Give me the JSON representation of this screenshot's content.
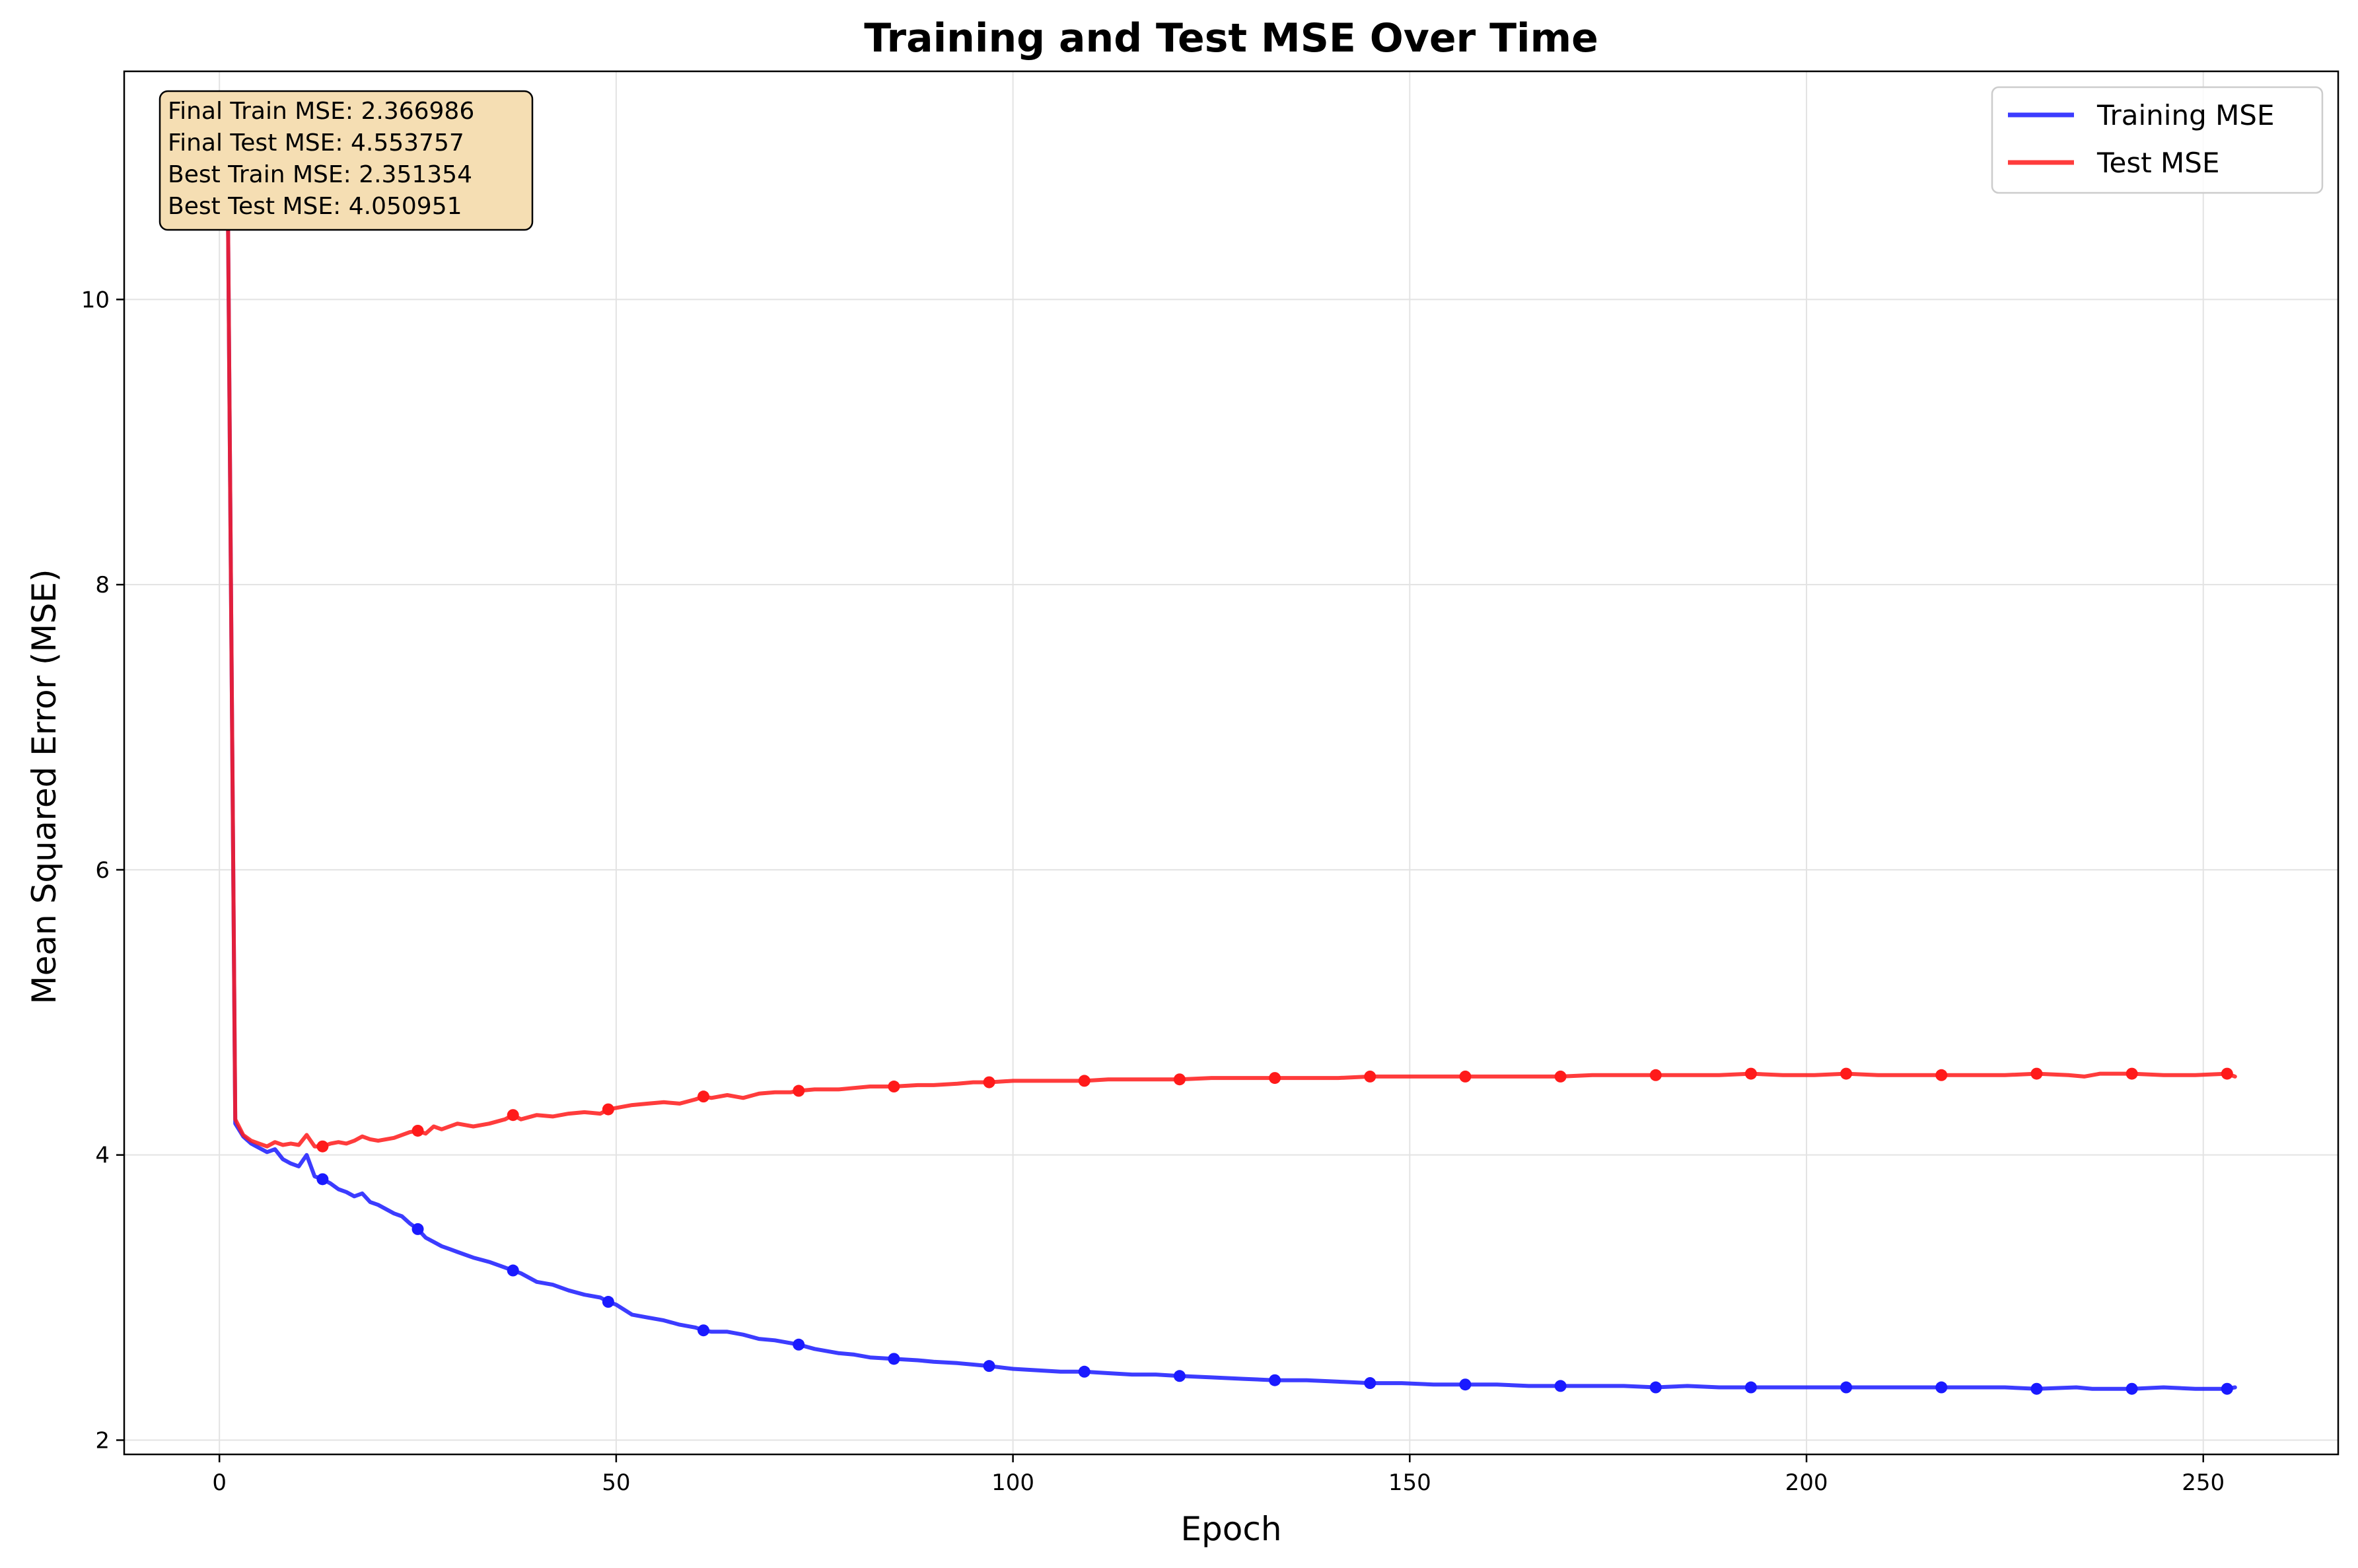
{
  "chart_data": {
    "type": "line",
    "title": "Training and Test MSE Over Time",
    "xlabel": "Epoch",
    "ylabel": "Mean Squared Error (MSE)",
    "xlim": [
      -12,
      267
    ],
    "ylim": [
      1.9,
      11.6
    ],
    "xticks": [
      0,
      50,
      100,
      150,
      200,
      250
    ],
    "yticks": [
      2,
      4,
      6,
      8,
      10
    ],
    "grid": true,
    "legend_position": "top-right",
    "stats_box": [
      "Final Train MSE: 2.366986",
      "Final Test MSE: 4.553757",
      "Best Train MSE: 2.351354",
      "Best Test MSE: 4.050951"
    ],
    "marker_epochs": [
      13,
      25,
      37,
      49,
      61,
      73,
      85,
      97,
      109,
      121,
      133,
      145,
      157,
      169,
      181,
      193,
      205,
      217,
      229,
      241,
      253
    ],
    "series": [
      {
        "name": "Training MSE",
        "color": "#1a1aff",
        "points": [
          [
            1,
            11.15
          ],
          [
            2,
            4.22
          ],
          [
            3,
            4.13
          ],
          [
            4,
            4.08
          ],
          [
            5,
            4.05
          ],
          [
            6,
            4.02
          ],
          [
            7,
            4.04
          ],
          [
            8,
            3.97
          ],
          [
            9,
            3.94
          ],
          [
            10,
            3.92
          ],
          [
            11,
            4.0
          ],
          [
            12,
            3.85
          ],
          [
            13,
            3.83
          ],
          [
            14,
            3.8
          ],
          [
            15,
            3.76
          ],
          [
            16,
            3.74
          ],
          [
            17,
            3.71
          ],
          [
            18,
            3.73
          ],
          [
            19,
            3.67
          ],
          [
            20,
            3.65
          ],
          [
            21,
            3.62
          ],
          [
            22,
            3.59
          ],
          [
            23,
            3.57
          ],
          [
            24,
            3.52
          ],
          [
            25,
            3.48
          ],
          [
            26,
            3.42
          ],
          [
            27,
            3.39
          ],
          [
            28,
            3.36
          ],
          [
            29,
            3.34
          ],
          [
            30,
            3.32
          ],
          [
            32,
            3.28
          ],
          [
            34,
            3.25
          ],
          [
            36,
            3.21
          ],
          [
            37,
            3.19
          ],
          [
            38,
            3.17
          ],
          [
            40,
            3.11
          ],
          [
            42,
            3.09
          ],
          [
            44,
            3.05
          ],
          [
            46,
            3.02
          ],
          [
            48,
            3.0
          ],
          [
            49,
            2.97
          ],
          [
            50,
            2.95
          ],
          [
            52,
            2.88
          ],
          [
            54,
            2.86
          ],
          [
            56,
            2.84
          ],
          [
            58,
            2.81
          ],
          [
            60,
            2.79
          ],
          [
            61,
            2.77
          ],
          [
            62,
            2.76
          ],
          [
            64,
            2.76
          ],
          [
            66,
            2.74
          ],
          [
            68,
            2.71
          ],
          [
            70,
            2.7
          ],
          [
            72,
            2.68
          ],
          [
            73,
            2.67
          ],
          [
            75,
            2.64
          ],
          [
            78,
            2.61
          ],
          [
            80,
            2.6
          ],
          [
            82,
            2.58
          ],
          [
            85,
            2.57
          ],
          [
            88,
            2.56
          ],
          [
            90,
            2.55
          ],
          [
            93,
            2.54
          ],
          [
            95,
            2.53
          ],
          [
            97,
            2.52
          ],
          [
            100,
            2.5
          ],
          [
            103,
            2.49
          ],
          [
            106,
            2.48
          ],
          [
            109,
            2.48
          ],
          [
            112,
            2.47
          ],
          [
            115,
            2.46
          ],
          [
            118,
            2.46
          ],
          [
            121,
            2.45
          ],
          [
            125,
            2.44
          ],
          [
            129,
            2.43
          ],
          [
            133,
            2.42
          ],
          [
            137,
            2.42
          ],
          [
            141,
            2.41
          ],
          [
            145,
            2.4
          ],
          [
            149,
            2.4
          ],
          [
            153,
            2.39
          ],
          [
            157,
            2.39
          ],
          [
            161,
            2.39
          ],
          [
            165,
            2.38
          ],
          [
            169,
            2.38
          ],
          [
            173,
            2.38
          ],
          [
            177,
            2.38
          ],
          [
            181,
            2.37
          ],
          [
            185,
            2.38
          ],
          [
            189,
            2.37
          ],
          [
            193,
            2.37
          ],
          [
            197,
            2.37
          ],
          [
            201,
            2.37
          ],
          [
            205,
            2.37
          ],
          [
            209,
            2.37
          ],
          [
            213,
            2.37
          ],
          [
            217,
            2.37
          ],
          [
            221,
            2.37
          ],
          [
            225,
            2.37
          ],
          [
            229,
            2.36
          ],
          [
            234,
            2.37
          ],
          [
            236,
            2.36
          ],
          [
            241,
            2.36
          ],
          [
            245,
            2.37
          ],
          [
            249,
            2.36
          ],
          [
            253,
            2.36
          ],
          [
            254,
            2.37
          ]
        ]
      },
      {
        "name": "Test MSE",
        "color": "#ff1a1a",
        "points": [
          [
            1,
            11.15
          ],
          [
            2,
            4.25
          ],
          [
            3,
            4.14
          ],
          [
            4,
            4.1
          ],
          [
            5,
            4.08
          ],
          [
            6,
            4.06
          ],
          [
            7,
            4.09
          ],
          [
            8,
            4.07
          ],
          [
            9,
            4.08
          ],
          [
            10,
            4.07
          ],
          [
            11,
            4.14
          ],
          [
            12,
            4.06
          ],
          [
            13,
            4.06
          ],
          [
            14,
            4.08
          ],
          [
            15,
            4.09
          ],
          [
            16,
            4.08
          ],
          [
            17,
            4.1
          ],
          [
            18,
            4.13
          ],
          [
            19,
            4.11
          ],
          [
            20,
            4.1
          ],
          [
            22,
            4.12
          ],
          [
            24,
            4.16
          ],
          [
            25,
            4.17
          ],
          [
            26,
            4.15
          ],
          [
            27,
            4.2
          ],
          [
            28,
            4.18
          ],
          [
            30,
            4.22
          ],
          [
            32,
            4.2
          ],
          [
            34,
            4.22
          ],
          [
            36,
            4.25
          ],
          [
            37,
            4.28
          ],
          [
            38,
            4.25
          ],
          [
            40,
            4.28
          ],
          [
            42,
            4.27
          ],
          [
            44,
            4.29
          ],
          [
            46,
            4.3
          ],
          [
            48,
            4.29
          ],
          [
            49,
            4.32
          ],
          [
            50,
            4.33
          ],
          [
            52,
            4.35
          ],
          [
            54,
            4.36
          ],
          [
            56,
            4.37
          ],
          [
            58,
            4.36
          ],
          [
            60,
            4.39
          ],
          [
            61,
            4.41
          ],
          [
            62,
            4.4
          ],
          [
            64,
            4.42
          ],
          [
            66,
            4.4
          ],
          [
            68,
            4.43
          ],
          [
            70,
            4.44
          ],
          [
            72,
            4.44
          ],
          [
            73,
            4.45
          ],
          [
            75,
            4.46
          ],
          [
            78,
            4.46
          ],
          [
            80,
            4.47
          ],
          [
            82,
            4.48
          ],
          [
            85,
            4.48
          ],
          [
            88,
            4.49
          ],
          [
            90,
            4.49
          ],
          [
            93,
            4.5
          ],
          [
            95,
            4.51
          ],
          [
            97,
            4.51
          ],
          [
            100,
            4.52
          ],
          [
            103,
            4.52
          ],
          [
            106,
            4.52
          ],
          [
            109,
            4.52
          ],
          [
            112,
            4.53
          ],
          [
            115,
            4.53
          ],
          [
            118,
            4.53
          ],
          [
            121,
            4.53
          ],
          [
            125,
            4.54
          ],
          [
            129,
            4.54
          ],
          [
            133,
            4.54
          ],
          [
            137,
            4.54
          ],
          [
            141,
            4.54
          ],
          [
            145,
            4.55
          ],
          [
            149,
            4.55
          ],
          [
            153,
            4.55
          ],
          [
            157,
            4.55
          ],
          [
            161,
            4.55
          ],
          [
            165,
            4.55
          ],
          [
            169,
            4.55
          ],
          [
            173,
            4.56
          ],
          [
            177,
            4.56
          ],
          [
            181,
            4.56
          ],
          [
            185,
            4.56
          ],
          [
            189,
            4.56
          ],
          [
            193,
            4.57
          ],
          [
            197,
            4.56
          ],
          [
            201,
            4.56
          ],
          [
            205,
            4.57
          ],
          [
            209,
            4.56
          ],
          [
            213,
            4.56
          ],
          [
            217,
            4.56
          ],
          [
            221,
            4.56
          ],
          [
            225,
            4.56
          ],
          [
            229,
            4.57
          ],
          [
            233,
            4.56
          ],
          [
            235,
            4.55
          ],
          [
            237,
            4.57
          ],
          [
            241,
            4.57
          ],
          [
            245,
            4.56
          ],
          [
            249,
            4.56
          ],
          [
            253,
            4.57
          ],
          [
            254,
            4.55
          ]
        ]
      }
    ]
  }
}
